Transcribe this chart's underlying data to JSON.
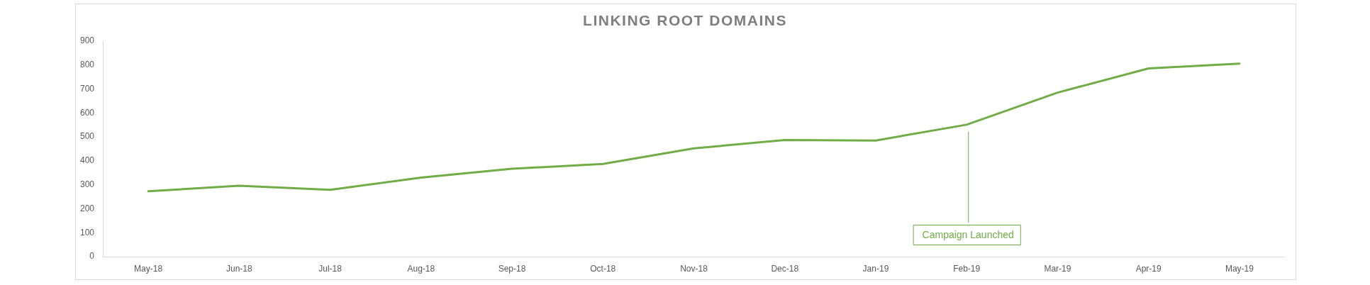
{
  "chart_data": {
    "type": "line",
    "title": "LINKING ROOT DOMAINS",
    "categories": [
      "May-18",
      "Jun-18",
      "Jul-18",
      "Aug-18",
      "Sep-18",
      "Oct-18",
      "Nov-18",
      "Dec-18",
      "Jan-19",
      "Feb-19",
      "Mar-19",
      "Apr-19",
      "May-19"
    ],
    "series": [
      {
        "color": "#70ad47",
        "values": [
          273,
          296,
          279,
          330,
          367,
          387,
          452,
          487,
          485,
          551,
          685,
          786,
          806
        ]
      }
    ],
    "ylim": [
      0,
      900
    ],
    "yticks": [
      0,
      100,
      200,
      300,
      400,
      500,
      600,
      700,
      800,
      900
    ],
    "ref_lines": [
      {
        "axis": "x",
        "value": "Feb-19",
        "label": "Campaign Launched",
        "color": "#70ad47"
      }
    ]
  }
}
